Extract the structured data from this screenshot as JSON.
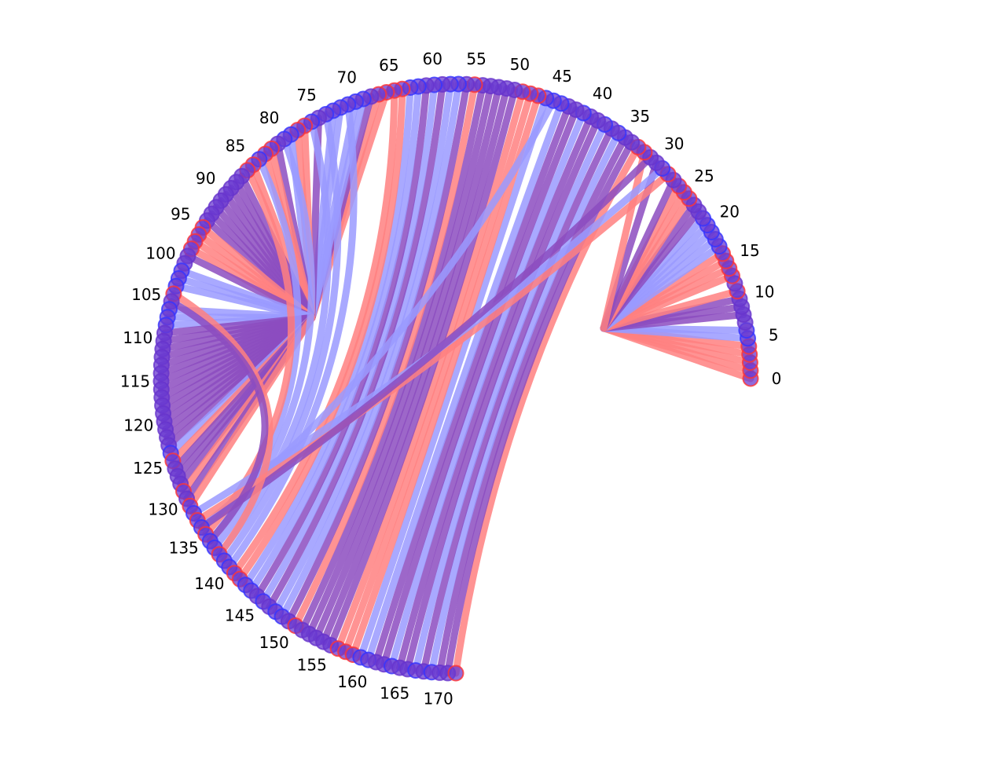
{
  "diagram": {
    "type": "chord",
    "node_count": 173,
    "node_start_angle_deg": 0,
    "node_end_angle_deg": 270,
    "tick_labels": [
      "0",
      "5",
      "10",
      "15",
      "20",
      "25",
      "30",
      "35",
      "40",
      "45",
      "50",
      "55",
      "60",
      "65",
      "70",
      "75",
      "80",
      "85",
      "90",
      "95",
      "100",
      "105",
      "110",
      "115",
      "120",
      "125",
      "130",
      "135",
      "140",
      "145",
      "150",
      "155",
      "160",
      "165",
      "170"
    ],
    "colors": {
      "red": "#ff8080",
      "blue": "#9a9aff",
      "purple": "#8c4cbf",
      "node_fill": "#6a3ad0",
      "node_stroke": "#6633cc",
      "node_highlight_red": "#ff3333",
      "node_highlight_blue": "#3333ff"
    },
    "hubs": [
      {
        "hub": 12,
        "links": [
          {
            "node": 0,
            "color": "red"
          },
          {
            "node": 1,
            "color": "red"
          },
          {
            "node": 2,
            "color": "red"
          },
          {
            "node": 3,
            "color": "red"
          },
          {
            "node": 4,
            "color": "red"
          },
          {
            "node": 5,
            "color": "blue"
          },
          {
            "node": 6,
            "color": "blue"
          },
          {
            "node": 8,
            "color": "purple"
          },
          {
            "node": 9,
            "color": "purple"
          },
          {
            "node": 10,
            "color": "purple"
          },
          {
            "node": 11,
            "color": "red"
          },
          {
            "node": 13,
            "color": "red"
          },
          {
            "node": 14,
            "color": "red"
          },
          {
            "node": 15,
            "color": "red"
          },
          {
            "node": 16,
            "color": "red"
          },
          {
            "node": 17,
            "color": "blue"
          },
          {
            "node": 18,
            "color": "blue"
          },
          {
            "node": 19,
            "color": "blue"
          },
          {
            "node": 20,
            "color": "blue"
          },
          {
            "node": 21,
            "color": "blue"
          },
          {
            "node": 22,
            "color": "purple"
          },
          {
            "node": 23,
            "color": "purple"
          },
          {
            "node": 24,
            "color": "red"
          },
          {
            "node": 25,
            "color": "red"
          },
          {
            "node": 26,
            "color": "red"
          },
          {
            "node": 27,
            "color": "purple"
          },
          {
            "node": 30,
            "color": "purple"
          },
          {
            "node": 32,
            "color": "red"
          }
        ]
      },
      {
        "hub": 100,
        "links": [
          {
            "node": 66,
            "color": "red"
          },
          {
            "node": 67,
            "color": "red"
          },
          {
            "node": 68,
            "color": "purple"
          },
          {
            "node": 69,
            "color": "blue"
          },
          {
            "node": 70,
            "color": "blue"
          },
          {
            "node": 72,
            "color": "blue"
          },
          {
            "node": 73,
            "color": "blue"
          },
          {
            "node": 75,
            "color": "purple"
          },
          {
            "node": 77,
            "color": "red"
          },
          {
            "node": 78,
            "color": "red"
          },
          {
            "node": 79,
            "color": "blue"
          },
          {
            "node": 81,
            "color": "purple"
          },
          {
            "node": 82,
            "color": "red"
          },
          {
            "node": 83,
            "color": "red"
          },
          {
            "node": 85,
            "color": "red"
          },
          {
            "node": 87,
            "color": "purple"
          },
          {
            "node": 88,
            "color": "purple"
          },
          {
            "node": 89,
            "color": "purple"
          },
          {
            "node": 90,
            "color": "purple"
          },
          {
            "node": 91,
            "color": "purple"
          },
          {
            "node": 92,
            "color": "purple"
          },
          {
            "node": 93,
            "color": "purple"
          },
          {
            "node": 94,
            "color": "purple"
          },
          {
            "node": 95,
            "color": "red"
          },
          {
            "node": 96,
            "color": "red"
          },
          {
            "node": 97,
            "color": "red"
          },
          {
            "node": 98,
            "color": "red"
          },
          {
            "node": 99,
            "color": "purple"
          },
          {
            "node": 101,
            "color": "blue"
          },
          {
            "node": 102,
            "color": "blue"
          },
          {
            "node": 103,
            "color": "blue"
          },
          {
            "node": 106,
            "color": "blue"
          },
          {
            "node": 107,
            "color": "blue"
          },
          {
            "node": 108,
            "color": "blue"
          },
          {
            "node": 109,
            "color": "purple"
          },
          {
            "node": 110,
            "color": "purple"
          },
          {
            "node": 111,
            "color": "purple"
          },
          {
            "node": 112,
            "color": "purple"
          },
          {
            "node": 113,
            "color": "purple"
          },
          {
            "node": 114,
            "color": "purple"
          },
          {
            "node": 115,
            "color": "purple"
          },
          {
            "node": 116,
            "color": "purple"
          },
          {
            "node": 117,
            "color": "purple"
          },
          {
            "node": 118,
            "color": "purple"
          },
          {
            "node": 119,
            "color": "purple"
          },
          {
            "node": 120,
            "color": "purple"
          },
          {
            "node": 121,
            "color": "purple"
          },
          {
            "node": 122,
            "color": "purple"
          },
          {
            "node": 123,
            "color": "purple"
          },
          {
            "node": 124,
            "color": "blue"
          },
          {
            "node": 125,
            "color": "red"
          },
          {
            "node": 126,
            "color": "purple"
          },
          {
            "node": 127,
            "color": "purple"
          },
          {
            "node": 128,
            "color": "purple"
          },
          {
            "node": 129,
            "color": "red"
          },
          {
            "node": 130,
            "color": "purple"
          },
          {
            "node": 131,
            "color": "red"
          }
        ]
      }
    ],
    "links": [
      {
        "a": 33,
        "b": 172,
        "color": "red"
      },
      {
        "a": 34,
        "b": 171,
        "color": "purple"
      },
      {
        "a": 35,
        "b": 170,
        "color": "purple"
      },
      {
        "a": 36,
        "b": 169,
        "color": "blue"
      },
      {
        "a": 37,
        "b": 168,
        "color": "purple"
      },
      {
        "a": 38,
        "b": 167,
        "color": "blue"
      },
      {
        "a": 39,
        "b": 166,
        "color": "purple"
      },
      {
        "a": 40,
        "b": 165,
        "color": "purple"
      },
      {
        "a": 41,
        "b": 164,
        "color": "blue"
      },
      {
        "a": 42,
        "b": 163,
        "color": "purple"
      },
      {
        "a": 43,
        "b": 162,
        "color": "purple"
      },
      {
        "a": 44,
        "b": 161,
        "color": "blue"
      },
      {
        "a": 46,
        "b": 160,
        "color": "blue"
      },
      {
        "a": 47,
        "b": 159,
        "color": "red"
      },
      {
        "a": 48,
        "b": 158,
        "color": "red"
      },
      {
        "a": 49,
        "b": 157,
        "color": "red"
      },
      {
        "a": 50,
        "b": 156,
        "color": "purple"
      },
      {
        "a": 51,
        "b": 155,
        "color": "purple"
      },
      {
        "a": 52,
        "b": 154,
        "color": "purple"
      },
      {
        "a": 53,
        "b": 153,
        "color": "purple"
      },
      {
        "a": 54,
        "b": 152,
        "color": "purple"
      },
      {
        "a": 55,
        "b": 151,
        "color": "red"
      },
      {
        "a": 56,
        "b": 150,
        "color": "purple"
      },
      {
        "a": 57,
        "b": 149,
        "color": "blue"
      },
      {
        "a": 58,
        "b": 148,
        "color": "blue"
      },
      {
        "a": 59,
        "b": 147,
        "color": "purple"
      },
      {
        "a": 60,
        "b": 146,
        "color": "blue"
      },
      {
        "a": 61,
        "b": 145,
        "color": "purple"
      },
      {
        "a": 62,
        "b": 144,
        "color": "blue"
      },
      {
        "a": 63,
        "b": 143,
        "color": "blue"
      },
      {
        "a": 64,
        "b": 142,
        "color": "red"
      },
      {
        "a": 65,
        "b": 141,
        "color": "red"
      },
      {
        "a": 71,
        "b": 140,
        "color": "blue"
      },
      {
        "a": 74,
        "b": 139,
        "color": "blue"
      },
      {
        "a": 76,
        "b": 138,
        "color": "blue"
      },
      {
        "a": 80,
        "b": 137,
        "color": "blue"
      },
      {
        "a": 84,
        "b": 136,
        "color": "blue"
      },
      {
        "a": 86,
        "b": 135,
        "color": "red"
      },
      {
        "a": 45,
        "b": 134,
        "color": "blue"
      },
      {
        "a": 28,
        "b": 133,
        "color": "red"
      },
      {
        "a": 29,
        "b": 132,
        "color": "blue"
      },
      {
        "a": 31,
        "b": 134,
        "color": "purple"
      },
      {
        "a": 104,
        "b": 138,
        "color": "red"
      },
      {
        "a": 105,
        "b": 136,
        "color": "purple"
      }
    ]
  }
}
